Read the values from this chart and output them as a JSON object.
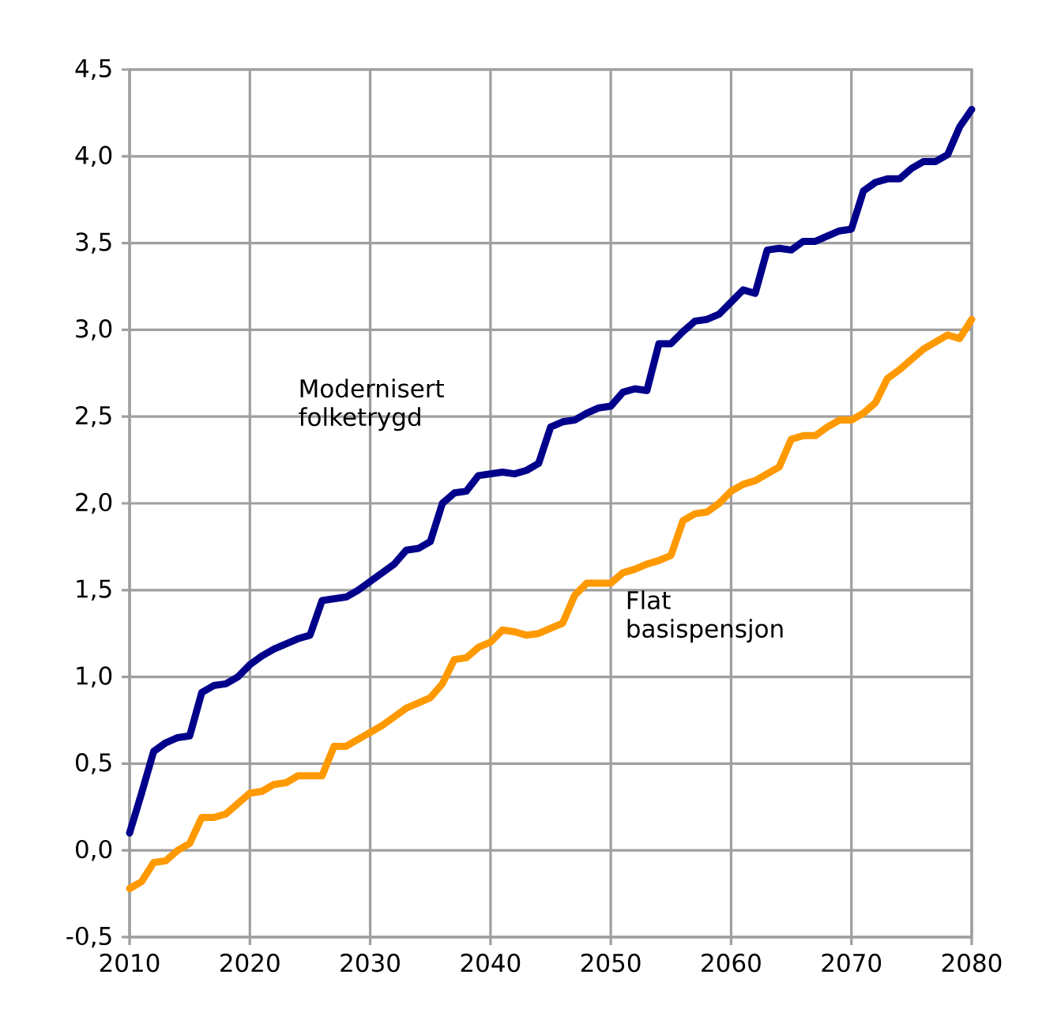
{
  "chart_data": {
    "type": "line",
    "x": [
      2010,
      2011,
      2012,
      2013,
      2014,
      2015,
      2016,
      2017,
      2018,
      2019,
      2020,
      2021,
      2022,
      2023,
      2024,
      2025,
      2026,
      2027,
      2028,
      2029,
      2030,
      2031,
      2032,
      2033,
      2034,
      2035,
      2036,
      2037,
      2038,
      2039,
      2040,
      2041,
      2042,
      2043,
      2044,
      2045,
      2046,
      2047,
      2048,
      2049,
      2050,
      2051,
      2052,
      2053,
      2054,
      2055,
      2056,
      2057,
      2058,
      2059,
      2060,
      2061,
      2062,
      2063,
      2064,
      2065,
      2066,
      2067,
      2068,
      2069,
      2070,
      2071,
      2072,
      2073,
      2074,
      2075,
      2076,
      2077,
      2078,
      2079,
      2080
    ],
    "series": [
      {
        "name": "Modernisert folketrygd",
        "color": "#00008b",
        "values": [
          0.1,
          0.33,
          0.57,
          0.62,
          0.65,
          0.66,
          0.91,
          0.95,
          0.96,
          1.0,
          1.07,
          1.12,
          1.16,
          1.19,
          1.22,
          1.24,
          1.44,
          1.45,
          1.46,
          1.5,
          1.55,
          1.6,
          1.65,
          1.73,
          1.74,
          1.78,
          2.0,
          2.06,
          2.07,
          2.16,
          2.17,
          2.18,
          2.17,
          2.19,
          2.23,
          2.44,
          2.47,
          2.48,
          2.52,
          2.55,
          2.56,
          2.64,
          2.66,
          2.65,
          2.92,
          2.92,
          2.99,
          3.05,
          3.06,
          3.09,
          3.16,
          3.23,
          3.21,
          3.46,
          3.47,
          3.46,
          3.51,
          3.51,
          3.54,
          3.57,
          3.58,
          3.8,
          3.85,
          3.87,
          3.87,
          3.93,
          3.97,
          3.97,
          4.01,
          4.17,
          4.27
        ]
      },
      {
        "name": "Flat basispensjon",
        "color": "#ff9900",
        "values": [
          -0.22,
          -0.18,
          -0.07,
          -0.06,
          0.0,
          0.04,
          0.19,
          0.19,
          0.21,
          0.27,
          0.33,
          0.34,
          0.38,
          0.39,
          0.43,
          0.43,
          0.43,
          0.6,
          0.6,
          0.64,
          0.68,
          0.72,
          0.77,
          0.82,
          0.85,
          0.88,
          0.96,
          1.1,
          1.11,
          1.17,
          1.2,
          1.27,
          1.26,
          1.24,
          1.25,
          1.28,
          1.31,
          1.47,
          1.54,
          1.54,
          1.54,
          1.6,
          1.62,
          1.65,
          1.67,
          1.7,
          1.9,
          1.94,
          1.95,
          2.0,
          2.07,
          2.11,
          2.13,
          2.17,
          2.21,
          2.37,
          2.39,
          2.39,
          2.44,
          2.48,
          2.48,
          2.52,
          2.58,
          2.72,
          2.77,
          2.83,
          2.89,
          2.93,
          2.97,
          2.95,
          3.06
        ]
      }
    ],
    "xlim": [
      2010,
      2080
    ],
    "ylim": [
      -0.5,
      4.5
    ],
    "xticks": [
      2010,
      2020,
      2030,
      2040,
      2050,
      2060,
      2070,
      2080
    ],
    "yticks": [
      {
        "value": -0.5,
        "label": "-0,5"
      },
      {
        "value": 0.0,
        "label": "0,0"
      },
      {
        "value": 0.5,
        "label": "0,5"
      },
      {
        "value": 1.0,
        "label": "1,0"
      },
      {
        "value": 1.5,
        "label": "1,5"
      },
      {
        "value": 2.0,
        "label": "2,0"
      },
      {
        "value": 2.5,
        "label": "2,5"
      },
      {
        "value": 3.0,
        "label": "3,0"
      },
      {
        "value": 3.5,
        "label": "3,5"
      },
      {
        "value": 4.0,
        "label": "4,0"
      },
      {
        "value": 4.5,
        "label": "4,5"
      }
    ],
    "grid": true,
    "marker": "none",
    "line_style": "solid"
  }
}
